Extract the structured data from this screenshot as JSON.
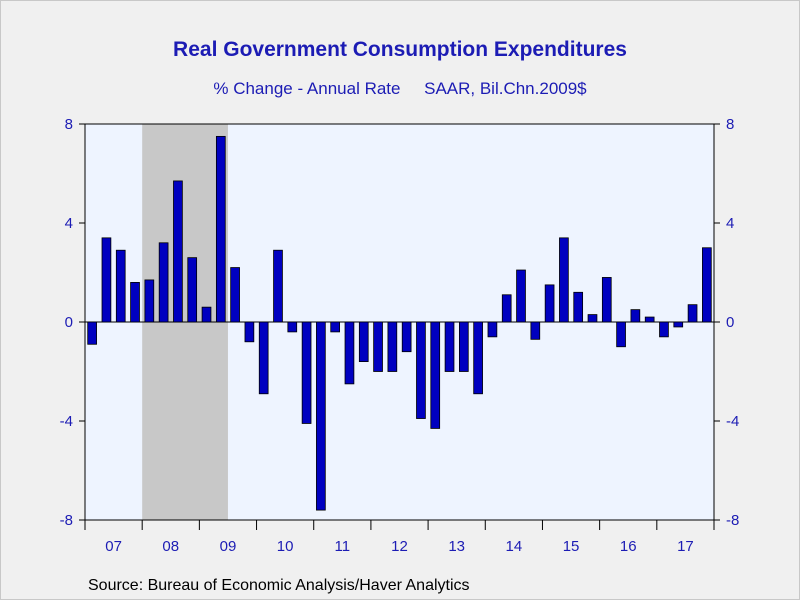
{
  "chart_data": {
    "type": "bar",
    "title": "Real Government Consumption Expenditures",
    "subtitle": "% Change - Annual Rate     SAAR, Bil.Chn.2009$",
    "xlabel": "",
    "ylabel": "",
    "ylim": [
      -8,
      8
    ],
    "yticks": [
      8,
      4,
      0,
      -4,
      -8
    ],
    "grid": false,
    "bar_color": "#0000c0",
    "recession_shade_color": "#c8c8c8",
    "plot_background": "#eef4ff",
    "x_tick_labels": [
      "07",
      "08",
      "09",
      "10",
      "11",
      "12",
      "13",
      "14",
      "15",
      "16",
      "17"
    ],
    "recession": {
      "start": "2008Q1",
      "end": "2009Q2"
    },
    "categories": [
      "2007Q1",
      "2007Q2",
      "2007Q3",
      "2007Q4",
      "2008Q1",
      "2008Q2",
      "2008Q3",
      "2008Q4",
      "2009Q1",
      "2009Q2",
      "2009Q3",
      "2009Q4",
      "2010Q1",
      "2010Q2",
      "2010Q3",
      "2010Q4",
      "2011Q1",
      "2011Q2",
      "2011Q3",
      "2011Q4",
      "2012Q1",
      "2012Q2",
      "2012Q3",
      "2012Q4",
      "2013Q1",
      "2013Q2",
      "2013Q3",
      "2013Q4",
      "2014Q1",
      "2014Q2",
      "2014Q3",
      "2014Q4",
      "2015Q1",
      "2015Q2",
      "2015Q3",
      "2015Q4",
      "2016Q1",
      "2016Q2",
      "2016Q3",
      "2016Q4",
      "2017Q1",
      "2017Q2",
      "2017Q3",
      "2017Q4"
    ],
    "values": [
      -0.9,
      3.4,
      2.9,
      1.6,
      1.7,
      3.2,
      5.7,
      2.6,
      0.6,
      7.5,
      2.2,
      -0.8,
      -2.9,
      2.9,
      -0.4,
      -4.1,
      -7.6,
      -0.4,
      -2.5,
      -1.6,
      -2.0,
      -2.0,
      -1.2,
      -3.9,
      -4.3,
      -2.0,
      -2.0,
      -2.9,
      -0.6,
      1.1,
      2.1,
      -0.7,
      1.5,
      3.4,
      1.2,
      0.3,
      1.8,
      -1.0,
      0.5,
      0.2,
      -0.6,
      -0.2,
      0.7,
      3.0
    ]
  },
  "source": "Source:  Bureau of Economic Analysis/Haver Analytics"
}
